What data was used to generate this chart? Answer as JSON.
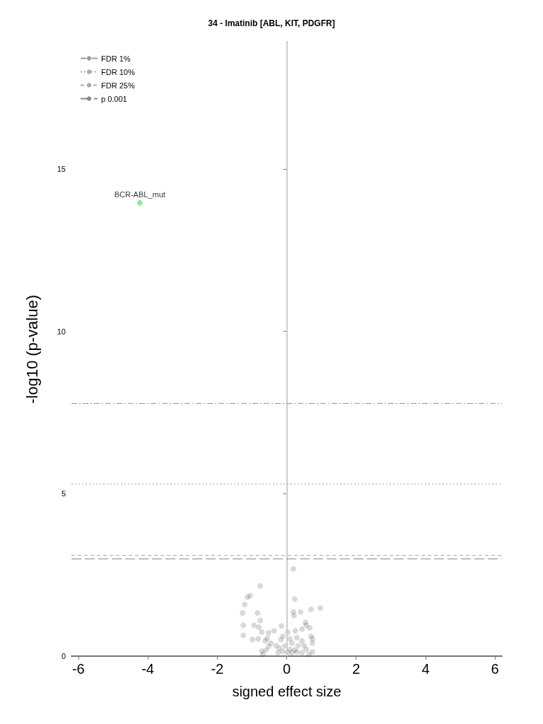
{
  "chart_data": {
    "type": "scatter",
    "title": "34 - Imatinib [ABL, KIT, PDGFR]",
    "xlabel": "signed effect size",
    "ylabel": "-log10 (p-value)",
    "xlim": [
      -6.2,
      6.2
    ],
    "ylim": [
      0,
      18.9
    ],
    "xticks": [
      -6,
      -4,
      -2,
      0,
      2,
      4,
      6
    ],
    "yticks": [
      0,
      5,
      10,
      15
    ],
    "grid": false,
    "legend": "top left",
    "marker": "circle",
    "series": [
      {
        "color": "#000000",
        "x": [
          0.19,
          -0.76,
          -1.13,
          -1.05,
          0.23,
          -1.21,
          0.97,
          0.7,
          0.4,
          0.19,
          0.21,
          -1.27,
          -0.84,
          -0.76,
          -1.25,
          -0.94,
          -0.8,
          -1.25,
          -0.15,
          0.54,
          0.56,
          0.66,
          -0.72,
          -0.52,
          -0.36,
          0.03,
          0.25,
          0.44,
          -0.99,
          -0.82,
          -0.62,
          -0.56,
          -0.46,
          0.7,
          0.74,
          0.74,
          -0.52,
          -0.72,
          -0.6,
          0.74,
          -0.17,
          -0.11,
          0.09,
          0.29,
          0.44,
          -0.31,
          -0.21,
          -0.05,
          0.15,
          0.33,
          0.5,
          0.56,
          -0.25,
          -0.11,
          0.03,
          0.15,
          0.29,
          0.44,
          0.09,
          0.23,
          0.64,
          -0.68
        ],
        "values": [
          2.69,
          2.16,
          1.82,
          1.86,
          1.76,
          1.59,
          1.48,
          1.44,
          1.36,
          1.36,
          1.25,
          1.33,
          1.33,
          1.1,
          0.95,
          0.95,
          0.89,
          0.64,
          0.93,
          1.04,
          0.95,
          0.87,
          0.74,
          0.72,
          0.78,
          0.74,
          0.78,
          0.83,
          0.51,
          0.53,
          0.47,
          0.55,
          0.4,
          0.61,
          0.53,
          0.4,
          0.3,
          0.15,
          0.19,
          0.13,
          0.51,
          0.61,
          0.53,
          0.57,
          0.47,
          0.32,
          0.25,
          0.32,
          0.4,
          0.32,
          0.32,
          0.21,
          0.11,
          0.15,
          0.11,
          0.11,
          0.13,
          0.11,
          0.21,
          0.19,
          0.06,
          0.06
        ]
      },
      {
        "color": "#90ee90",
        "x": [
          -4.23
        ],
        "values": [
          13.96
        ]
      }
    ],
    "annotations": [
      {
        "text": "BCR-ABL_mut",
        "x": -4.23,
        "y": 13.96
      }
    ],
    "ref_lines": [
      {
        "axis": "x",
        "value": 0,
        "color": "#cccccc",
        "line_style": "solid"
      },
      {
        "axis": "y",
        "value": 7.78,
        "label": "FDR 1%",
        "color": "#999999",
        "line_style": "dashdot"
      },
      {
        "axis": "y",
        "value": 5.3,
        "label": "FDR 10%",
        "color": "#aaaaaa",
        "line_style": "dotted"
      },
      {
        "axis": "y",
        "value": 3.11,
        "label": "FDR 25%",
        "color": "#aaaaaa",
        "line_style": "dashed"
      },
      {
        "axis": "y",
        "value": 3.0,
        "label": "p 0.001",
        "color": "#888888",
        "line_style": "longdash"
      }
    ]
  }
}
